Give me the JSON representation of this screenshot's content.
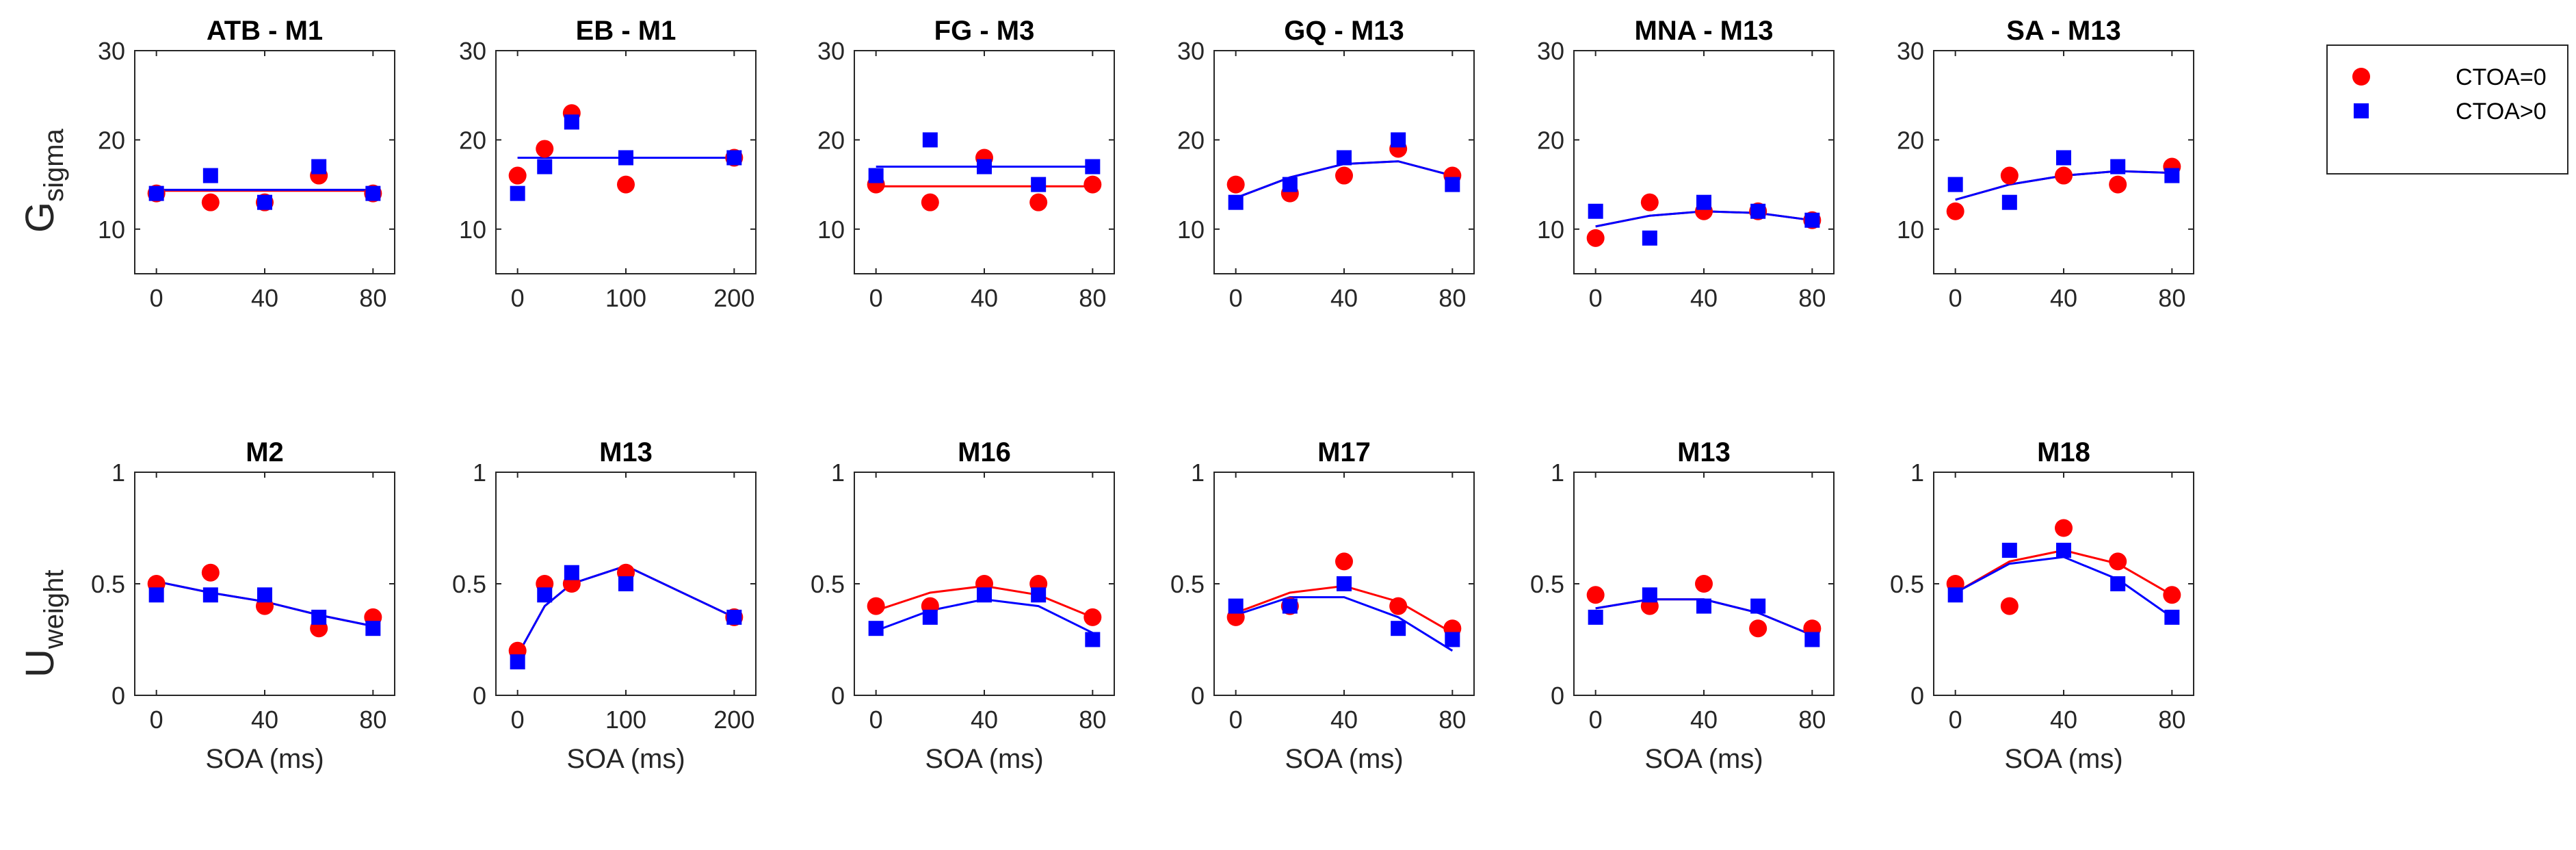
{
  "colors": {
    "ctoa0": "#ff0000",
    "ctoagt0": "#0000ff",
    "axis": "#262626"
  },
  "legend": {
    "placement": "outside-right-top",
    "entries": [
      {
        "label": "CTOA=0",
        "marker": "circle",
        "color": "#ff0000"
      },
      {
        "label": "CTOA>0",
        "marker": "square",
        "color": "#0000ff"
      }
    ]
  },
  "rows": {
    "top": {
      "ylabel_main": "G",
      "ylabel_sub": "sigma"
    },
    "bottom": {
      "ylabel_main": "U",
      "ylabel_sub": "weight"
    }
  },
  "chart_data": [
    {
      "type": "scatter",
      "row": 0,
      "title": "ATB - M1",
      "xlabel": "",
      "ylabel": "Gsigma",
      "xlim": [
        -8,
        88
      ],
      "ylim": [
        5,
        30
      ],
      "xticks": [
        "0",
        "40",
        "80"
      ],
      "yticks": [
        "10",
        "20",
        "30"
      ],
      "xtick_vals": [
        0,
        40,
        80
      ],
      "ytick_vals": [
        10,
        20,
        30
      ],
      "series": [
        {
          "name": "CTOA=0",
          "x": [
            0,
            20,
            40,
            60,
            80
          ],
          "y": [
            14,
            13,
            13,
            16,
            14
          ],
          "fit": [
            14.3,
            14.3,
            14.3,
            14.3,
            14.3
          ]
        },
        {
          "name": "CTOA>0",
          "x": [
            0,
            20,
            40,
            60,
            80
          ],
          "y": [
            14,
            16,
            13,
            17,
            14
          ],
          "fit": [
            14.4,
            14.4,
            14.4,
            14.4,
            14.4
          ]
        }
      ]
    },
    {
      "type": "scatter",
      "row": 0,
      "title": "EB - M1",
      "xlabel": "",
      "ylabel": "Gsigma",
      "xlim": [
        -20,
        220
      ],
      "ylim": [
        5,
        30
      ],
      "xticks": [
        "0",
        "100",
        "200"
      ],
      "yticks": [
        "10",
        "20",
        "30"
      ],
      "xtick_vals": [
        0,
        100,
        200
      ],
      "ytick_vals": [
        10,
        20,
        30
      ],
      "series": [
        {
          "name": "CTOA=0",
          "x": [
            0,
            25,
            50,
            100,
            200
          ],
          "y": [
            16,
            19,
            23,
            15,
            18
          ],
          "fit": [
            18,
            18,
            18,
            18,
            18
          ]
        },
        {
          "name": "CTOA>0",
          "x": [
            0,
            25,
            50,
            100,
            200
          ],
          "y": [
            14,
            17,
            22,
            18,
            18
          ],
          "fit": [
            18,
            18,
            18,
            18,
            18
          ]
        }
      ]
    },
    {
      "type": "scatter",
      "row": 0,
      "title": "FG - M3",
      "xlabel": "",
      "ylabel": "Gsigma",
      "xlim": [
        -8,
        88
      ],
      "ylim": [
        5,
        30
      ],
      "xticks": [
        "0",
        "40",
        "80"
      ],
      "yticks": [
        "10",
        "20",
        "30"
      ],
      "xtick_vals": [
        0,
        40,
        80
      ],
      "ytick_vals": [
        10,
        20,
        30
      ],
      "series": [
        {
          "name": "CTOA=0",
          "x": [
            0,
            20,
            40,
            60,
            80
          ],
          "y": [
            15,
            13,
            18,
            13,
            15
          ],
          "fit": [
            14.8,
            14.8,
            14.8,
            14.8,
            14.8
          ]
        },
        {
          "name": "CTOA>0",
          "x": [
            0,
            20,
            40,
            60,
            80
          ],
          "y": [
            16,
            20,
            17,
            15,
            17
          ],
          "fit": [
            17,
            17,
            17,
            17,
            17
          ]
        }
      ]
    },
    {
      "type": "scatter",
      "row": 0,
      "title": "GQ - M13",
      "xlabel": "",
      "ylabel": "Gsigma",
      "xlim": [
        -8,
        88
      ],
      "ylim": [
        5,
        30
      ],
      "xticks": [
        "0",
        "40",
        "80"
      ],
      "yticks": [
        "10",
        "20",
        "30"
      ],
      "xtick_vals": [
        0,
        40,
        80
      ],
      "ytick_vals": [
        10,
        20,
        30
      ],
      "series": [
        {
          "name": "CTOA=0",
          "x": [
            0,
            20,
            40,
            60,
            80
          ],
          "y": [
            15,
            14,
            16,
            19,
            16
          ],
          "fit": [
            13.5,
            15.8,
            17.3,
            17.6,
            16.0
          ]
        },
        {
          "name": "CTOA>0",
          "x": [
            0,
            20,
            40,
            60,
            80
          ],
          "y": [
            13,
            15,
            18,
            20,
            15
          ],
          "fit": [
            13.5,
            15.8,
            17.3,
            17.6,
            16.0
          ]
        }
      ]
    },
    {
      "type": "scatter",
      "row": 0,
      "title": "MNA - M13",
      "xlabel": "",
      "ylabel": "Gsigma",
      "xlim": [
        -8,
        88
      ],
      "ylim": [
        5,
        30
      ],
      "xticks": [
        "0",
        "40",
        "80"
      ],
      "yticks": [
        "10",
        "20",
        "30"
      ],
      "xtick_vals": [
        0,
        40,
        80
      ],
      "ytick_vals": [
        10,
        20,
        30
      ],
      "series": [
        {
          "name": "CTOA=0",
          "x": [
            0,
            20,
            40,
            60,
            80
          ],
          "y": [
            9,
            13,
            12,
            12,
            11
          ],
          "fit": [
            10.3,
            11.5,
            12.0,
            11.8,
            11.0
          ]
        },
        {
          "name": "CTOA>0",
          "x": [
            0,
            20,
            40,
            60,
            80
          ],
          "y": [
            12,
            9,
            13,
            12,
            11
          ],
          "fit": [
            10.3,
            11.5,
            12.0,
            11.8,
            11.0
          ]
        }
      ]
    },
    {
      "type": "scatter",
      "row": 0,
      "title": "SA - M13",
      "xlabel": "",
      "ylabel": "Gsigma",
      "xlim": [
        -8,
        88
      ],
      "ylim": [
        5,
        30
      ],
      "xticks": [
        "0",
        "40",
        "80"
      ],
      "yticks": [
        "10",
        "20",
        "30"
      ],
      "xtick_vals": [
        0,
        40,
        80
      ],
      "ytick_vals": [
        10,
        20,
        30
      ],
      "series": [
        {
          "name": "CTOA=0",
          "x": [
            0,
            20,
            40,
            60,
            80
          ],
          "y": [
            12,
            16,
            16,
            15,
            17
          ],
          "fit": [
            13.3,
            15.0,
            16.0,
            16.5,
            16.3
          ]
        },
        {
          "name": "CTOA>0",
          "x": [
            0,
            20,
            40,
            60,
            80
          ],
          "y": [
            15,
            13,
            18,
            17,
            16
          ],
          "fit": [
            13.3,
            15.0,
            16.0,
            16.5,
            16.3
          ]
        }
      ]
    },
    {
      "type": "scatter",
      "row": 1,
      "title": "M2",
      "xlabel": "SOA (ms)",
      "ylabel": "Uweight",
      "xlim": [
        -8,
        88
      ],
      "ylim": [
        0,
        1
      ],
      "xticks": [
        "0",
        "40",
        "80"
      ],
      "yticks": [
        "0",
        "0.5",
        "1"
      ],
      "xtick_vals": [
        0,
        40,
        80
      ],
      "ytick_vals": [
        0,
        0.5,
        1
      ],
      "series": [
        {
          "name": "CTOA=0",
          "x": [
            0,
            20,
            40,
            60,
            80
          ],
          "y": [
            0.5,
            0.55,
            0.4,
            0.3,
            0.35
          ],
          "fit": [
            0.51,
            0.46,
            0.42,
            0.36,
            0.31
          ]
        },
        {
          "name": "CTOA>0",
          "x": [
            0,
            20,
            40,
            60,
            80
          ],
          "y": [
            0.45,
            0.45,
            0.45,
            0.35,
            0.3
          ],
          "fit": [
            0.51,
            0.46,
            0.42,
            0.36,
            0.31
          ]
        }
      ]
    },
    {
      "type": "scatter",
      "row": 1,
      "title": "M13",
      "xlabel": "SOA (ms)",
      "ylabel": "Uweight",
      "xlim": [
        -20,
        220
      ],
      "ylim": [
        0,
        1
      ],
      "xticks": [
        "0",
        "100",
        "200"
      ],
      "yticks": [
        "0",
        "0.5",
        "1"
      ],
      "xtick_vals": [
        0,
        100,
        200
      ],
      "ytick_vals": [
        0,
        0.5,
        1
      ],
      "series": [
        {
          "name": "CTOA=0",
          "x": [
            0,
            25,
            50,
            100,
            200
          ],
          "y": [
            0.2,
            0.5,
            0.5,
            0.55,
            0.35
          ],
          "fit": [
            0.18,
            0.4,
            0.5,
            0.58,
            0.35
          ]
        },
        {
          "name": "CTOA>0",
          "x": [
            0,
            25,
            50,
            100,
            200
          ],
          "y": [
            0.15,
            0.45,
            0.55,
            0.5,
            0.35
          ],
          "fit": [
            0.18,
            0.4,
            0.5,
            0.58,
            0.35
          ]
        }
      ]
    },
    {
      "type": "scatter",
      "row": 1,
      "title": "M16",
      "xlabel": "SOA (ms)",
      "ylabel": "Uweight",
      "xlim": [
        -8,
        88
      ],
      "ylim": [
        0,
        1
      ],
      "xticks": [
        "0",
        "40",
        "80"
      ],
      "yticks": [
        "0",
        "0.5",
        "1"
      ],
      "xtick_vals": [
        0,
        40,
        80
      ],
      "ytick_vals": [
        0,
        0.5,
        1
      ],
      "series": [
        {
          "name": "CTOA=0",
          "x": [
            0,
            20,
            40,
            60,
            80
          ],
          "y": [
            0.4,
            0.4,
            0.5,
            0.5,
            0.35
          ],
          "fit": [
            0.38,
            0.46,
            0.49,
            0.45,
            0.35
          ]
        },
        {
          "name": "CTOA>0",
          "x": [
            0,
            20,
            40,
            60,
            80
          ],
          "y": [
            0.3,
            0.35,
            0.45,
            0.45,
            0.25
          ],
          "fit": [
            0.29,
            0.38,
            0.43,
            0.4,
            0.28
          ]
        }
      ]
    },
    {
      "type": "scatter",
      "row": 1,
      "title": "M17",
      "xlabel": "SOA (ms)",
      "ylabel": "Uweight",
      "xlim": [
        -8,
        88
      ],
      "ylim": [
        0,
        1
      ],
      "xticks": [
        "0",
        "40",
        "80"
      ],
      "yticks": [
        "0",
        "0.5",
        "1"
      ],
      "xtick_vals": [
        0,
        40,
        80
      ],
      "ytick_vals": [
        0,
        0.5,
        1
      ],
      "series": [
        {
          "name": "CTOA=0",
          "x": [
            0,
            20,
            40,
            60,
            80
          ],
          "y": [
            0.35,
            0.4,
            0.6,
            0.4,
            0.3
          ],
          "fit": [
            0.37,
            0.46,
            0.49,
            0.42,
            0.28
          ]
        },
        {
          "name": "CTOA>0",
          "x": [
            0,
            20,
            40,
            60,
            80
          ],
          "y": [
            0.4,
            0.4,
            0.5,
            0.3,
            0.25
          ],
          "fit": [
            0.36,
            0.44,
            0.44,
            0.35,
            0.2
          ]
        }
      ]
    },
    {
      "type": "scatter",
      "row": 1,
      "title": "M13",
      "xlabel": "SOA (ms)",
      "ylabel": "Uweight",
      "xlim": [
        -8,
        88
      ],
      "ylim": [
        0,
        1
      ],
      "xticks": [
        "0",
        "40",
        "80"
      ],
      "yticks": [
        "0",
        "0.5",
        "1"
      ],
      "xtick_vals": [
        0,
        40,
        80
      ],
      "ytick_vals": [
        0,
        0.5,
        1
      ],
      "series": [
        {
          "name": "CTOA=0",
          "x": [
            0,
            20,
            40,
            60,
            80
          ],
          "y": [
            0.45,
            0.4,
            0.5,
            0.3,
            0.3
          ],
          "fit": [
            0.39,
            0.43,
            0.43,
            0.37,
            0.27
          ]
        },
        {
          "name": "CTOA>0",
          "x": [
            0,
            20,
            40,
            60,
            80
          ],
          "y": [
            0.35,
            0.45,
            0.4,
            0.4,
            0.25
          ],
          "fit": [
            0.39,
            0.43,
            0.43,
            0.37,
            0.27
          ]
        }
      ]
    },
    {
      "type": "scatter",
      "row": 1,
      "title": "M18",
      "xlabel": "SOA (ms)",
      "ylabel": "Uweight",
      "xlim": [
        -8,
        88
      ],
      "ylim": [
        0,
        1
      ],
      "xticks": [
        "0",
        "40",
        "80"
      ],
      "yticks": [
        "0",
        "0.5",
        "1"
      ],
      "xtick_vals": [
        0,
        40,
        80
      ],
      "ytick_vals": [
        0,
        0.5,
        1
      ],
      "series": [
        {
          "name": "CTOA=0",
          "x": [
            0,
            20,
            40,
            60,
            80
          ],
          "y": [
            0.5,
            0.4,
            0.75,
            0.6,
            0.45
          ],
          "fit": [
            0.46,
            0.6,
            0.65,
            0.59,
            0.45
          ]
        },
        {
          "name": "CTOA>0",
          "x": [
            0,
            20,
            40,
            60,
            80
          ],
          "y": [
            0.45,
            0.65,
            0.65,
            0.5,
            0.35
          ],
          "fit": [
            0.46,
            0.59,
            0.62,
            0.52,
            0.35
          ]
        }
      ]
    }
  ]
}
